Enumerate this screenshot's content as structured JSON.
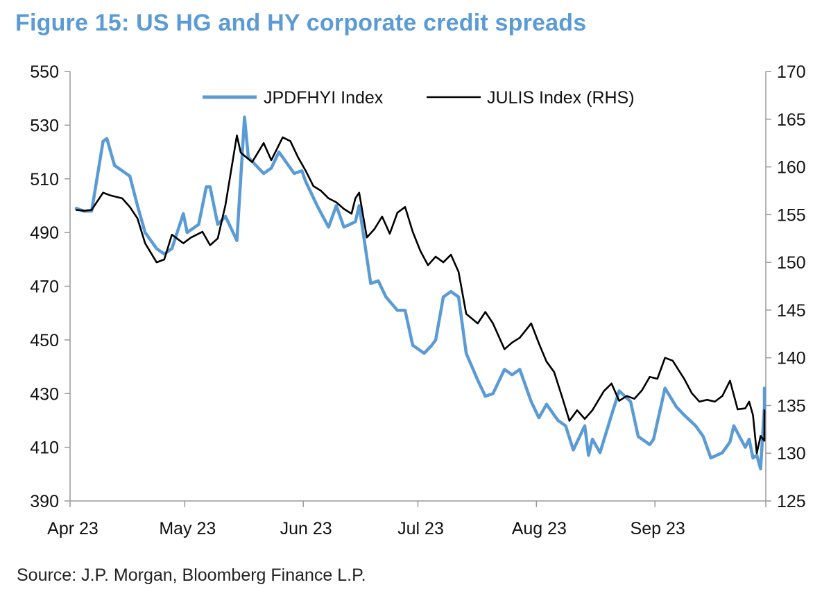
{
  "title": "Figure 15: US HG and HY corporate credit spreads",
  "source": "Source: J.P. Morgan, Bloomberg Finance L.P.",
  "chart_data": {
    "type": "line",
    "title": "Figure 15: US HG and HY corporate credit spreads",
    "x_ticks": [
      "Apr 23",
      "May 23",
      "Jun 23",
      "Jul 23",
      "Aug 23",
      "Sep 23"
    ],
    "x_range": [
      "2023-04-01",
      "2023-09-30"
    ],
    "y_left": {
      "min": 390,
      "max": 550,
      "ticks": [
        390,
        410,
        430,
        450,
        470,
        490,
        510,
        530,
        550
      ]
    },
    "y_right": {
      "min": 125,
      "max": 170,
      "ticks": [
        125,
        130,
        135,
        140,
        145,
        150,
        155,
        160,
        165,
        170
      ]
    },
    "legend": {
      "placement": "top-center"
    },
    "grid": false,
    "series": [
      {
        "name": "JPDFHYI Index",
        "axis": "left",
        "color": "#5b9bd5",
        "points": [
          [
            "2023-04-03",
            499
          ],
          [
            "2023-04-05",
            498
          ],
          [
            "2023-04-07",
            498
          ],
          [
            "2023-04-10",
            524
          ],
          [
            "2023-04-11",
            525
          ],
          [
            "2023-04-13",
            515
          ],
          [
            "2023-04-17",
            511
          ],
          [
            "2023-04-19",
            500
          ],
          [
            "2023-04-21",
            490
          ],
          [
            "2023-04-24",
            484
          ],
          [
            "2023-04-26",
            482
          ],
          [
            "2023-04-28",
            484
          ],
          [
            "2023-05-01",
            497
          ],
          [
            "2023-05-02",
            490
          ],
          [
            "2023-05-05",
            493
          ],
          [
            "2023-05-07",
            507
          ],
          [
            "2023-05-08",
            507
          ],
          [
            "2023-05-10",
            493
          ],
          [
            "2023-05-12",
            496
          ],
          [
            "2023-05-15",
            487
          ],
          [
            "2023-05-17",
            533
          ],
          [
            "2023-05-18",
            518
          ],
          [
            "2023-05-22",
            512
          ],
          [
            "2023-05-24",
            514
          ],
          [
            "2023-05-26",
            520
          ],
          [
            "2023-05-30",
            512
          ],
          [
            "2023-06-01",
            513
          ],
          [
            "2023-06-02",
            509
          ],
          [
            "2023-06-05",
            500
          ],
          [
            "2023-06-08",
            492
          ],
          [
            "2023-06-10",
            500
          ],
          [
            "2023-06-12",
            492
          ],
          [
            "2023-06-15",
            494
          ],
          [
            "2023-06-16",
            500
          ],
          [
            "2023-06-19",
            471
          ],
          [
            "2023-06-21",
            472
          ],
          [
            "2023-06-23",
            466
          ],
          [
            "2023-06-26",
            461
          ],
          [
            "2023-06-28",
            461
          ],
          [
            "2023-06-30",
            448
          ],
          [
            "2023-07-03",
            445
          ],
          [
            "2023-07-05",
            448
          ],
          [
            "2023-07-06",
            450
          ],
          [
            "2023-07-08",
            466
          ],
          [
            "2023-07-10",
            468
          ],
          [
            "2023-07-12",
            466
          ],
          [
            "2023-07-14",
            445
          ],
          [
            "2023-07-17",
            435
          ],
          [
            "2023-07-19",
            429
          ],
          [
            "2023-07-21",
            430
          ],
          [
            "2023-07-24",
            439
          ],
          [
            "2023-07-26",
            437
          ],
          [
            "2023-07-28",
            439
          ],
          [
            "2023-07-31",
            427
          ],
          [
            "2023-08-02",
            421
          ],
          [
            "2023-08-04",
            426
          ],
          [
            "2023-08-07",
            420
          ],
          [
            "2023-08-09",
            418
          ],
          [
            "2023-08-11",
            409
          ],
          [
            "2023-08-14",
            418
          ],
          [
            "2023-08-15",
            407
          ],
          [
            "2023-08-16",
            413
          ],
          [
            "2023-08-18",
            408
          ],
          [
            "2023-08-21",
            422
          ],
          [
            "2023-08-23",
            431
          ],
          [
            "2023-08-26",
            427
          ],
          [
            "2023-08-28",
            414
          ],
          [
            "2023-08-31",
            411
          ],
          [
            "2023-09-01",
            413
          ],
          [
            "2023-09-04",
            432
          ],
          [
            "2023-09-07",
            425
          ],
          [
            "2023-09-09",
            422
          ],
          [
            "2023-09-12",
            418
          ],
          [
            "2023-09-14",
            414
          ],
          [
            "2023-09-16",
            406
          ],
          [
            "2023-09-19",
            408
          ],
          [
            "2023-09-21",
            412
          ],
          [
            "2023-09-22",
            418
          ],
          [
            "2023-09-25",
            410
          ],
          [
            "2023-09-26",
            413
          ],
          [
            "2023-09-27",
            406
          ],
          [
            "2023-09-28",
            407
          ],
          [
            "2023-09-29",
            402
          ],
          [
            "2023-09-30",
            425
          ],
          [
            "2023-09-30",
            432
          ]
        ]
      },
      {
        "name": "JULIS Index (RHS)",
        "axis": "right",
        "color": "#000000",
        "points": [
          [
            "2023-04-03",
            155.5
          ],
          [
            "2023-04-05",
            155.4
          ],
          [
            "2023-04-07",
            155.5
          ],
          [
            "2023-04-10",
            157.3
          ],
          [
            "2023-04-12",
            157.0
          ],
          [
            "2023-04-15",
            156.7
          ],
          [
            "2023-04-17",
            155.8
          ],
          [
            "2023-04-19",
            154.6
          ],
          [
            "2023-04-21",
            152.0
          ],
          [
            "2023-04-24",
            150.0
          ],
          [
            "2023-04-26",
            150.3
          ],
          [
            "2023-04-28",
            152.9
          ],
          [
            "2023-05-01",
            152.0
          ],
          [
            "2023-05-03",
            152.6
          ],
          [
            "2023-05-06",
            153.2
          ],
          [
            "2023-05-08",
            151.8
          ],
          [
            "2023-05-10",
            152.5
          ],
          [
            "2023-05-12",
            156.0
          ],
          [
            "2023-05-15",
            163.3
          ],
          [
            "2023-05-16",
            161.5
          ],
          [
            "2023-05-19",
            160.5
          ],
          [
            "2023-05-22",
            162.5
          ],
          [
            "2023-05-24",
            160.7
          ],
          [
            "2023-05-27",
            163.1
          ],
          [
            "2023-05-29",
            162.7
          ],
          [
            "2023-05-31",
            161.0
          ],
          [
            "2023-06-02",
            159.6
          ],
          [
            "2023-06-04",
            158.0
          ],
          [
            "2023-06-06",
            157.5
          ],
          [
            "2023-06-08",
            156.7
          ],
          [
            "2023-06-10",
            156.3
          ],
          [
            "2023-06-12",
            155.6
          ],
          [
            "2023-06-14",
            155.1
          ],
          [
            "2023-06-15",
            156.7
          ],
          [
            "2023-06-16",
            157.3
          ],
          [
            "2023-06-18",
            152.6
          ],
          [
            "2023-06-20",
            153.5
          ],
          [
            "2023-06-22",
            154.8
          ],
          [
            "2023-06-24",
            153.0
          ],
          [
            "2023-06-26",
            155.2
          ],
          [
            "2023-06-28",
            155.8
          ],
          [
            "2023-06-30",
            153.2
          ],
          [
            "2023-07-02",
            151.2
          ],
          [
            "2023-07-04",
            149.7
          ],
          [
            "2023-07-06",
            150.6
          ],
          [
            "2023-07-08",
            150.0
          ],
          [
            "2023-07-10",
            150.8
          ],
          [
            "2023-07-12",
            149.0
          ],
          [
            "2023-07-14",
            144.6
          ],
          [
            "2023-07-17",
            143.6
          ],
          [
            "2023-07-19",
            144.8
          ],
          [
            "2023-07-21",
            143.6
          ],
          [
            "2023-07-24",
            140.9
          ],
          [
            "2023-07-26",
            141.6
          ],
          [
            "2023-07-28",
            142.1
          ],
          [
            "2023-07-31",
            143.6
          ],
          [
            "2023-08-02",
            141.5
          ],
          [
            "2023-08-04",
            139.6
          ],
          [
            "2023-08-06",
            138.5
          ],
          [
            "2023-08-08",
            136.0
          ],
          [
            "2023-08-10",
            133.4
          ],
          [
            "2023-08-12",
            134.5
          ],
          [
            "2023-08-14",
            133.6
          ],
          [
            "2023-08-16",
            134.5
          ],
          [
            "2023-08-19",
            136.5
          ],
          [
            "2023-08-21",
            137.3
          ],
          [
            "2023-08-23",
            135.5
          ],
          [
            "2023-08-25",
            136.0
          ],
          [
            "2023-08-27",
            135.7
          ],
          [
            "2023-08-29",
            136.6
          ],
          [
            "2023-08-31",
            138.0
          ],
          [
            "2023-09-02",
            137.8
          ],
          [
            "2023-09-04",
            140.0
          ],
          [
            "2023-09-06",
            139.7
          ],
          [
            "2023-09-09",
            137.8
          ],
          [
            "2023-09-11",
            136.3
          ],
          [
            "2023-09-13",
            135.4
          ],
          [
            "2023-09-15",
            135.6
          ],
          [
            "2023-09-17",
            135.4
          ],
          [
            "2023-09-19",
            136.0
          ],
          [
            "2023-09-21",
            137.6
          ],
          [
            "2023-09-23",
            134.6
          ],
          [
            "2023-09-25",
            134.7
          ],
          [
            "2023-09-26",
            135.4
          ],
          [
            "2023-09-27",
            134.0
          ],
          [
            "2023-09-28",
            130.0
          ],
          [
            "2023-09-29",
            131.8
          ],
          [
            "2023-09-30",
            131.3
          ],
          [
            "2023-09-30",
            132.5
          ],
          [
            "2023-09-30",
            134.5
          ]
        ]
      }
    ]
  },
  "colors": {
    "title": "#5b9bd5",
    "hy_line": "#5b9bd5",
    "hg_line": "#000000",
    "axis": "#999999",
    "text": "#111111"
  }
}
